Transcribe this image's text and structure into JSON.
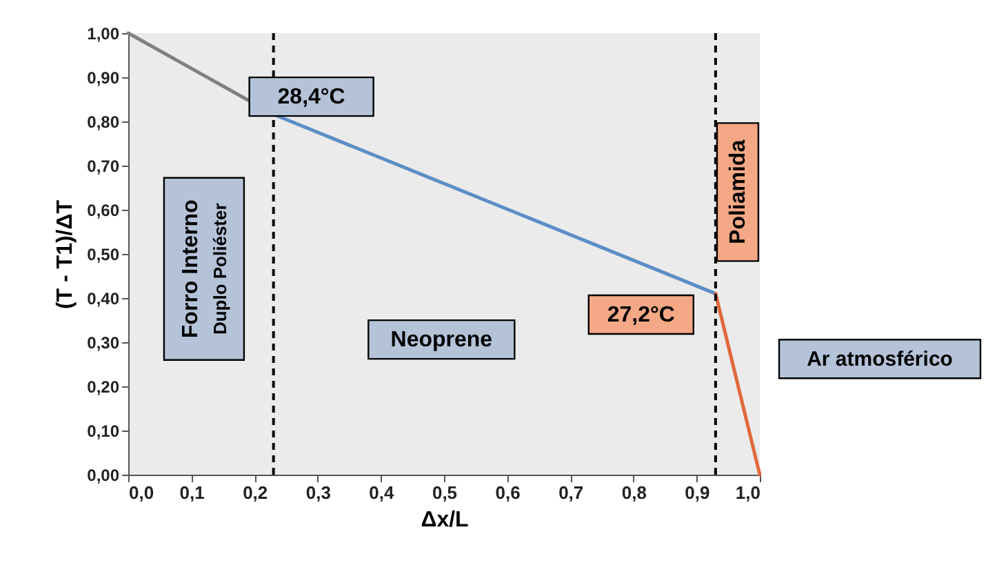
{
  "chart_data": {
    "type": "line",
    "xlabel": "Δx/L",
    "ylabel": "(T - T1)/ΔT",
    "series": [
      {
        "color": "#808080",
        "x": [
          0,
          0.23
        ],
        "values": [
          1.0,
          0.816
        ]
      },
      {
        "color": "#5b8ec6",
        "x": [
          0.23,
          0.93
        ],
        "values": [
          0.816,
          0.41
        ]
      },
      {
        "color": "#e0693a",
        "x": [
          0.93,
          1.0
        ],
        "values": [
          0.41,
          0.0
        ]
      }
    ],
    "xlim": [
      0,
      1
    ],
    "xticks": [
      {
        "value": 0,
        "label": "0,0"
      },
      {
        "value": 0.1,
        "label": "0,1"
      },
      {
        "value": 0.2,
        "label": "0,2"
      },
      {
        "value": 0.3,
        "label": "0,3"
      },
      {
        "value": 0.4,
        "label": "0,4"
      },
      {
        "value": 0.5,
        "label": "0,5"
      },
      {
        "value": 0.6,
        "label": "0,6"
      },
      {
        "value": 0.7,
        "label": "0,7"
      },
      {
        "value": 0.8,
        "label": "0,8"
      },
      {
        "value": 0.9,
        "label": "0,9"
      },
      {
        "value": 1,
        "label": "1,0"
      }
    ],
    "ylim": [
      0,
      1
    ],
    "yticks": [
      {
        "value": 0,
        "label": "0,00"
      },
      {
        "value": 0.1,
        "label": "0,10"
      },
      {
        "value": 0.2,
        "label": "0,20"
      },
      {
        "value": 0.3,
        "label": "0,30"
      },
      {
        "value": 0.4,
        "label": "0,40"
      },
      {
        "value": 0.5,
        "label": "0,50"
      },
      {
        "value": 0.6,
        "label": "0,60"
      },
      {
        "value": 0.7,
        "label": "0,70"
      },
      {
        "value": 0.8,
        "label": "0,80"
      },
      {
        "value": 0.9,
        "label": "0,90"
      },
      {
        "value": 1,
        "label": "1,00"
      }
    ],
    "ref_lines": [
      {
        "axis": "x",
        "value": 0.23,
        "color": "#000000",
        "line_style": "dashed"
      },
      {
        "axis": "x",
        "value": 0.93,
        "color": "#000000",
        "line_style": "dashed"
      }
    ],
    "annotations": [
      {
        "text": "28,4°C",
        "x": 0.23,
        "y": 0.816
      },
      {
        "text": "27,2°C",
        "x": 0.93,
        "y": 0.41
      },
      "Neoprene",
      "Forro Interno",
      "Duplo Poliéster",
      "Poliamida",
      "Ar atmosférico"
    ],
    "grid": false,
    "marker": "none",
    "line_style": "solid"
  }
}
